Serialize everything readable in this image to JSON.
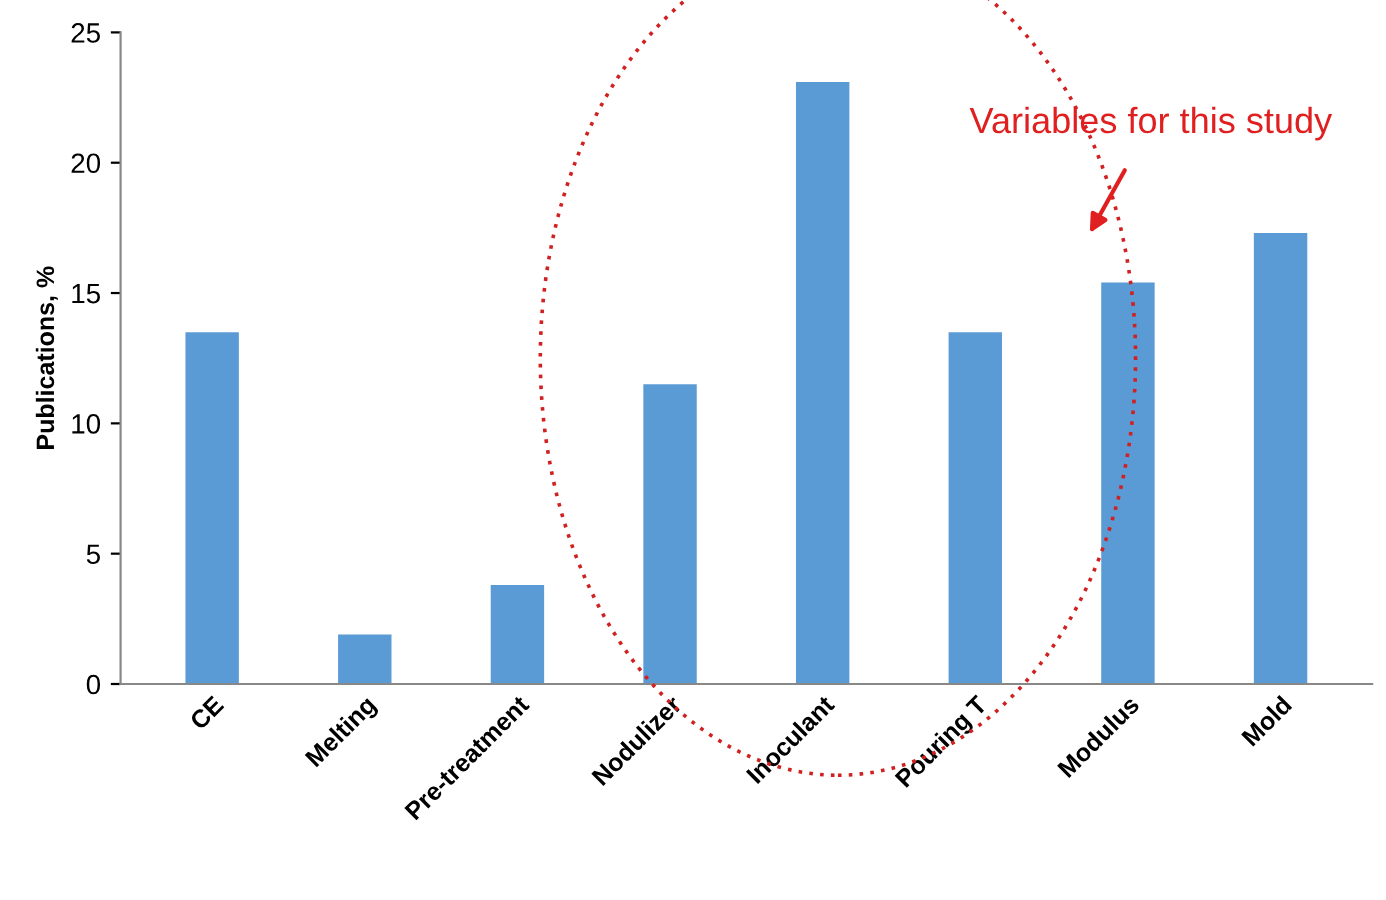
{
  "chart_data": {
    "type": "bar",
    "ylabel": "Publications, %",
    "categories": [
      "CE",
      "Melting",
      "Pre-treatment",
      "Nodulizer",
      "Inoculant",
      "Pouring T",
      "Modulus",
      "Mold"
    ],
    "values": [
      13.5,
      1.9,
      3.8,
      11.5,
      23.1,
      13.5,
      15.4,
      17.3
    ],
    "color": "#5b9bd5",
    "ylim": [
      0,
      25
    ],
    "yticks": [
      0,
      5,
      10,
      15,
      20,
      25
    ],
    "grid": false,
    "annotations": [
      "Variables for this study"
    ]
  }
}
